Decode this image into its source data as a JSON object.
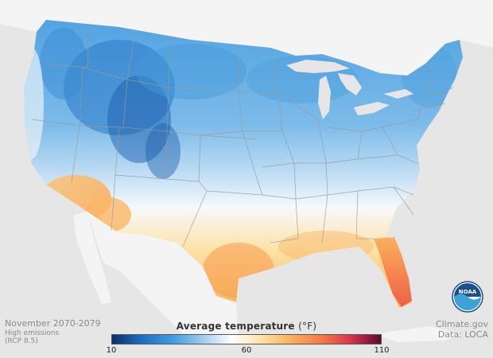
{
  "map": {
    "period": "November 2070-2079",
    "scenario_line1": "High emissions",
    "scenario_line2": "(RCP 8.5)",
    "source_org": "Climate.gov",
    "source_data": "Data: LOCA",
    "logo_text": "NOAA"
  },
  "legend": {
    "title": "Average temperature",
    "unit": "(°F)",
    "min_label": "10",
    "mid_label": "60",
    "max_label": "110",
    "min_value": 10,
    "mid_value": 60,
    "max_value": 110,
    "colors": [
      "#08306b",
      "#1f6fc0",
      "#3d9be0",
      "#9ccbee",
      "#ffffff",
      "#fde2a6",
      "#fbb05e",
      "#f57a45",
      "#d6354b",
      "#5c0a2c"
    ]
  },
  "colors": {
    "background": "#e6e6e6",
    "land_other": "#f4f4f4",
    "water": "#e6e6e6",
    "state_borders": "#9a9a9a"
  }
}
